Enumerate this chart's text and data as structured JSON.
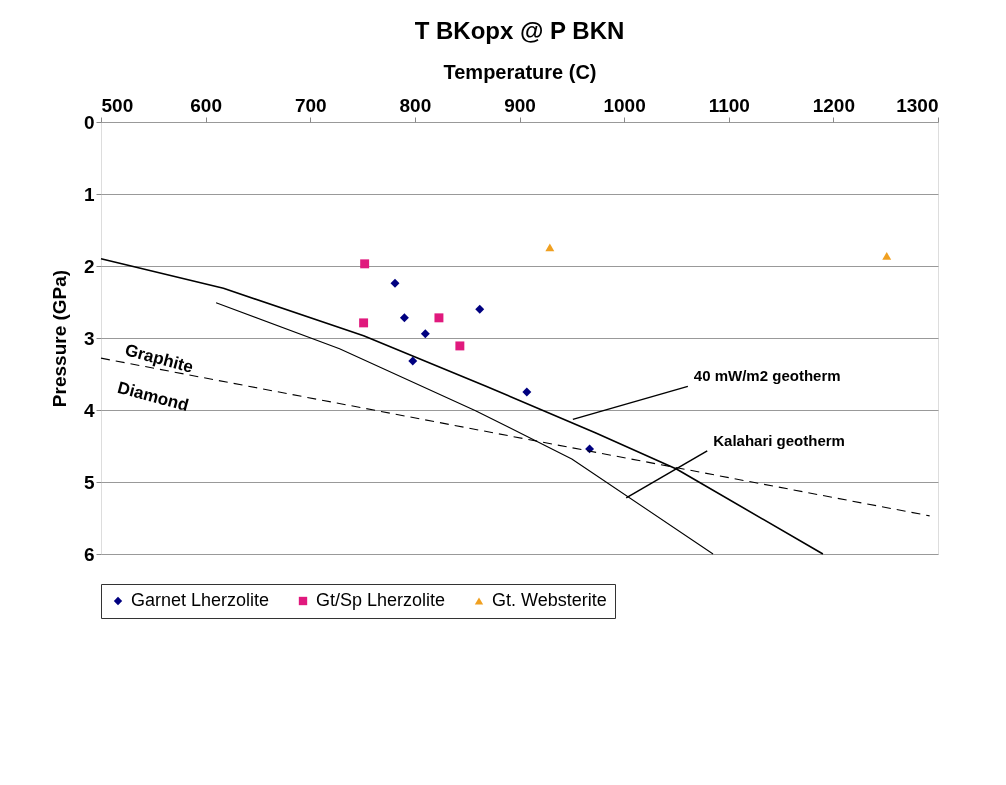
{
  "chart_data": {
    "type": "scatter",
    "title": "T BKopx @ P BKN",
    "xlabel": "Temperature (C)",
    "ylabel": "Pressure (GPa)",
    "xlim": [
      500,
      1300
    ],
    "xticks": [
      500,
      600,
      700,
      800,
      900,
      1000,
      1100,
      1200,
      1300
    ],
    "ylim": [
      6,
      0
    ],
    "yticks": [
      0,
      1,
      2,
      3,
      4,
      5,
      6
    ],
    "grid": "y",
    "legend": "bottom",
    "series": [
      {
        "name": "Garnet Lherzolite",
        "type": "scatter",
        "marker": "diamond",
        "color": "#000080",
        "x": [
          781,
          790,
          810,
          798,
          862,
          907,
          967
        ],
        "values": [
          2.24,
          2.72,
          2.94,
          3.32,
          2.6,
          3.75,
          4.54
        ]
      },
      {
        "name": "Gt/Sp Lherzolite",
        "type": "scatter",
        "marker": "square",
        "color": "#e0197d",
        "x": [
          752,
          751,
          823,
          843
        ],
        "values": [
          1.97,
          2.79,
          2.72,
          3.11
        ]
      },
      {
        "name": "Gt. Websterite",
        "type": "scatter",
        "marker": "triangle",
        "color": "#f0a020",
        "x": [
          929,
          1251
        ],
        "values": [
          1.74,
          1.86
        ]
      },
      {
        "type": "line",
        "color": "#000000",
        "line_style": "solid",
        "x": [
          500,
          617,
          751,
          868,
          973,
          1050,
          1190
        ],
        "values": [
          1.9,
          2.31,
          2.97,
          3.67,
          4.32,
          4.82,
          6.0
        ]
      },
      {
        "type": "line",
        "color": "#000000",
        "line_style": "solid",
        "x": [
          610,
          728,
          858,
          950,
          1085
        ],
        "values": [
          2.51,
          3.15,
          4.01,
          4.68,
          6.0
        ]
      },
      {
        "type": "line",
        "color": "#000000",
        "line_style": "dashed",
        "x": [
          500,
          1292
        ],
        "values": [
          3.28,
          5.47
        ]
      }
    ],
    "annotations": [
      "Graphite",
      "Diamond",
      {
        "text": "40 mW/m2 geotherm",
        "x": 951,
        "y": 4.13
      },
      {
        "text": "Kalahari geotherm",
        "x": 1002,
        "y": 5.22
      }
    ]
  }
}
